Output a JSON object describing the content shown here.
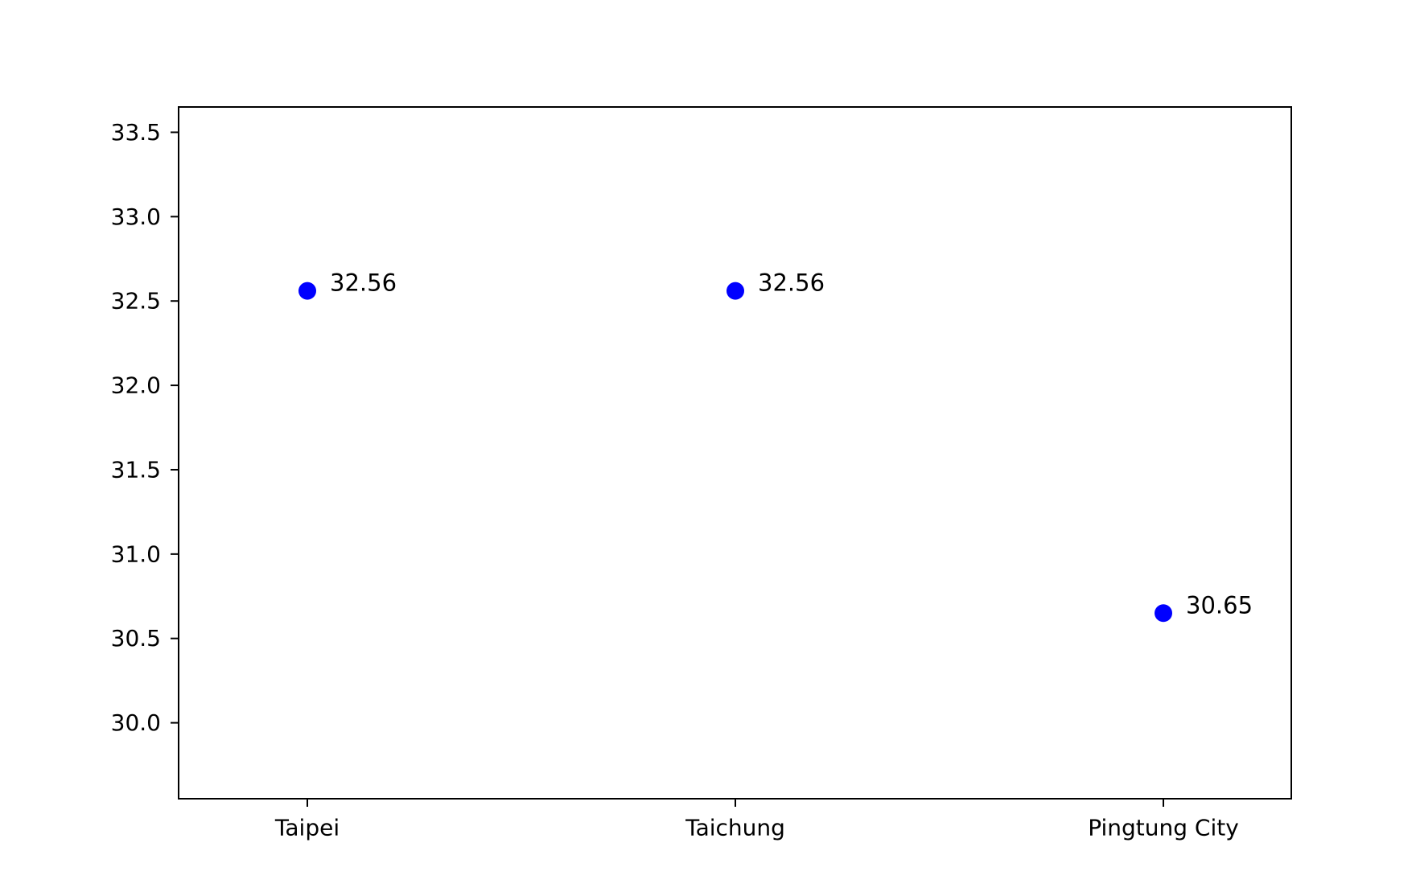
{
  "chart_data": {
    "type": "scatter",
    "title": "",
    "xlabel": "",
    "ylabel": "",
    "categories": [
      "Taipei",
      "Taichung",
      "Pingtung City"
    ],
    "values": [
      32.56,
      32.56,
      30.65
    ],
    "value_labels": [
      "32.56",
      "32.56",
      "30.65"
    ],
    "yticks": [
      30.0,
      30.5,
      31.0,
      31.5,
      32.0,
      32.5,
      33.0,
      33.5
    ],
    "ytick_labels": [
      "30.0",
      "30.5",
      "31.0",
      "31.5",
      "32.0",
      "32.5",
      "33.0",
      "33.5"
    ],
    "ylim": [
      29.55,
      33.65
    ],
    "grid": false,
    "marker_color": "#0000ff"
  }
}
